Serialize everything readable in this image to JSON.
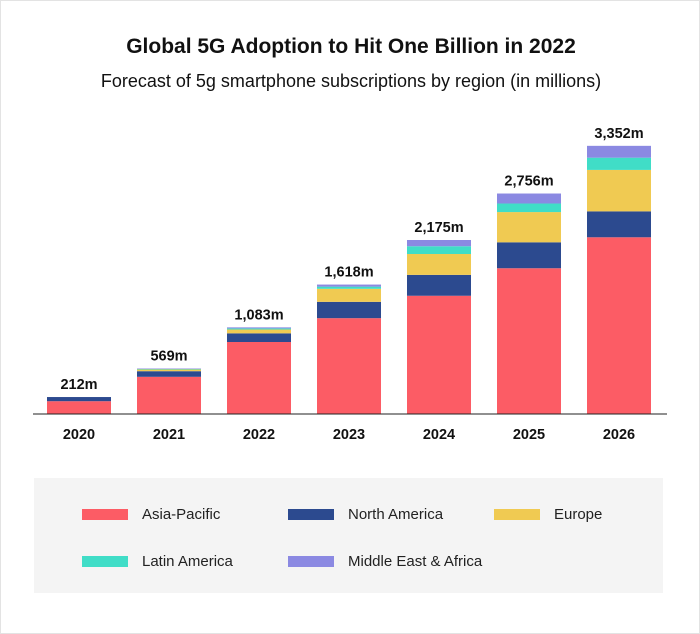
{
  "chart_data": {
    "type": "bar",
    "stacked": true,
    "title": "Global 5G Adoption to Hit One Billion in  2022",
    "subtitle": "Forecast of 5g smartphone subscriptions by region (in millions)",
    "xlabel": "",
    "ylabel": "",
    "ylim": [
      0,
      3600
    ],
    "grid": false,
    "legend_position": "bottom",
    "categories": [
      "2020",
      "2021",
      "2022",
      "2023",
      "2024",
      "2025",
      "2026"
    ],
    "totals": [
      212,
      569,
      1083,
      1618,
      2175,
      2756,
      3352
    ],
    "total_labels": [
      "212m",
      "569m",
      "1,083m",
      "1,618m",
      "2,175m",
      "2,756m",
      "3,352m"
    ],
    "series": [
      {
        "name": "Asia-Pacific",
        "color": "#fc5c65",
        "values": [
          160,
          465,
          900,
          1198,
          1478,
          1822,
          2209
        ]
      },
      {
        "name": "North America",
        "color": "#2c4a8f",
        "values": [
          52,
          70,
          108,
          204,
          261,
          324,
          324
        ]
      },
      {
        "name": "Europe",
        "color": "#f0ca52",
        "values": [
          0,
          21,
          48,
          163,
          261,
          378,
          518
        ]
      },
      {
        "name": "Latin America",
        "color": "#40ddc7",
        "values": [
          0,
          7,
          14,
          27,
          97,
          107,
          153
        ]
      },
      {
        "name": "Middle East & Africa",
        "color": "#8b89e2",
        "values": [
          0,
          6,
          13,
          26,
          78,
          125,
          148
        ]
      }
    ]
  }
}
